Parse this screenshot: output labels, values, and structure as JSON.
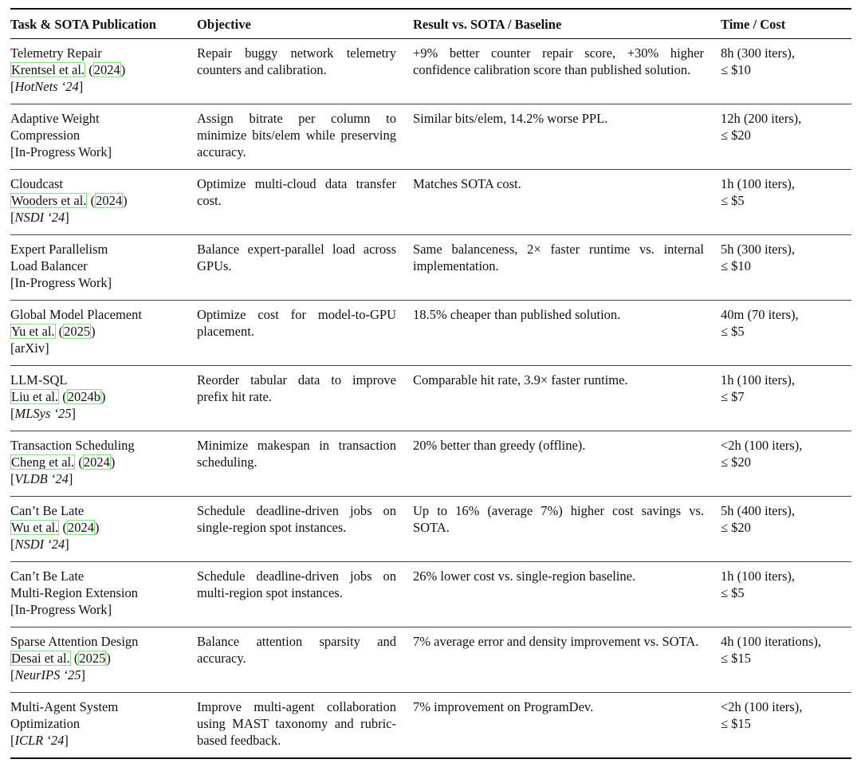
{
  "headers": [
    "Task & SOTA Publication",
    "Objective",
    "Result vs. SOTA / Baseline",
    "Time / Cost"
  ],
  "citation_box_color": "#7fe07f",
  "rows": [
    {
      "title_lines": [
        "Telemetry Repair"
      ],
      "author": "Krentsel et al.",
      "year": "2024",
      "venue": "HotNets ‘24",
      "venue_italic": true,
      "objective": "Repair buggy network telemetry counters and calibration.",
      "result": "+9% better counter repair score, +30% higher confidence calibration score than published solution.",
      "time": "8h (300 iters),",
      "cost": "≤ $10"
    },
    {
      "title_lines": [
        "Adaptive Weight",
        "Compression"
      ],
      "venue": "In-Progress Work",
      "venue_italic": false,
      "objective": "Assign bitrate per column to minimize bits/elem while preserving accuracy.",
      "result": "Similar bits/elem, 14.2% worse PPL.",
      "time": "12h (200 iters),",
      "cost": "≤ $20"
    },
    {
      "title_lines": [
        "Cloudcast"
      ],
      "author": "Wooders et al.",
      "year": "2024",
      "venue": "NSDI ‘24",
      "venue_italic": true,
      "objective": "Optimize multi-cloud data transfer cost.",
      "result": "Matches SOTA cost.",
      "time": "1h (100 iters),",
      "cost": "≤ $5"
    },
    {
      "title_lines": [
        "Expert Parallelism",
        "Load Balancer"
      ],
      "venue": "In-Progress Work",
      "venue_italic": false,
      "objective": "Balance expert-parallel load across GPUs.",
      "result": "Same balanceness, 2× faster runtime vs. internal implementation.",
      "time": "5h (300 iters),",
      "cost": "≤ $10"
    },
    {
      "title_lines": [
        "Global Model Placement"
      ],
      "author": "Yu et al.",
      "year": "2025",
      "venue": "arXiv",
      "venue_italic": false,
      "objective": "Optimize cost for model-to-GPU placement.",
      "result": "18.5% cheaper than published solution.",
      "time": "40m (70 iters),",
      "cost": "≤ $5"
    },
    {
      "title_lines": [
        "LLM-SQL"
      ],
      "author": "Liu et al.",
      "year": "2024b",
      "venue": "MLSys ‘25",
      "venue_italic": true,
      "objective": "Reorder tabular data to improve prefix hit rate.",
      "result": "Comparable hit rate, 3.9× faster runtime.",
      "time": "1h (100 iters),",
      "cost": "≤ $7"
    },
    {
      "title_lines": [
        "Transaction Scheduling"
      ],
      "author": "Cheng et al.",
      "year": "2024",
      "venue": "VLDB ‘24",
      "venue_italic": true,
      "objective": "Minimize makespan in transaction scheduling.",
      "result": "20% better than greedy (offline).",
      "time": "<2h (100 iters),",
      "cost": "≤ $20"
    },
    {
      "title_lines": [
        "Can’t Be Late"
      ],
      "author": "Wu et al.",
      "year": "2024",
      "venue": "NSDI ‘24",
      "venue_italic": true,
      "objective": "Schedule deadline-driven jobs on single-region spot instances.",
      "result": "Up to 16% (average 7%) higher cost savings vs. SOTA.",
      "time": "5h (400 iters),",
      "cost": "≤ $20"
    },
    {
      "title_lines": [
        "Can’t Be Late",
        "Multi-Region Extension"
      ],
      "venue": "In-Progress Work",
      "venue_italic": false,
      "objective": "Schedule deadline-driven jobs on multi-region spot instances.",
      "result": "26% lower cost vs. single-region baseline.",
      "time": "1h (100 iters),",
      "cost": "≤ $5"
    },
    {
      "title_lines": [
        "Sparse Attention Design"
      ],
      "author": "Desai et al.",
      "year": "2025",
      "venue": "NeurIPS ‘25",
      "venue_italic": true,
      "objective": "Balance attention sparsity and accuracy.",
      "result": "7% average error and density improvement vs. SOTA.",
      "time": "4h (100 iterations),",
      "cost": "≤ $15"
    },
    {
      "title_lines": [
        "Multi-Agent System",
        "Optimization"
      ],
      "venue": "ICLR ‘24",
      "venue_italic": true,
      "objective": "Improve multi-agent collaboration using MAST taxonomy and rubric-based feedback.",
      "result": "7% improvement on ProgramDev.",
      "time": "<2h (100 iters),",
      "cost": "≤ $15"
    }
  ]
}
